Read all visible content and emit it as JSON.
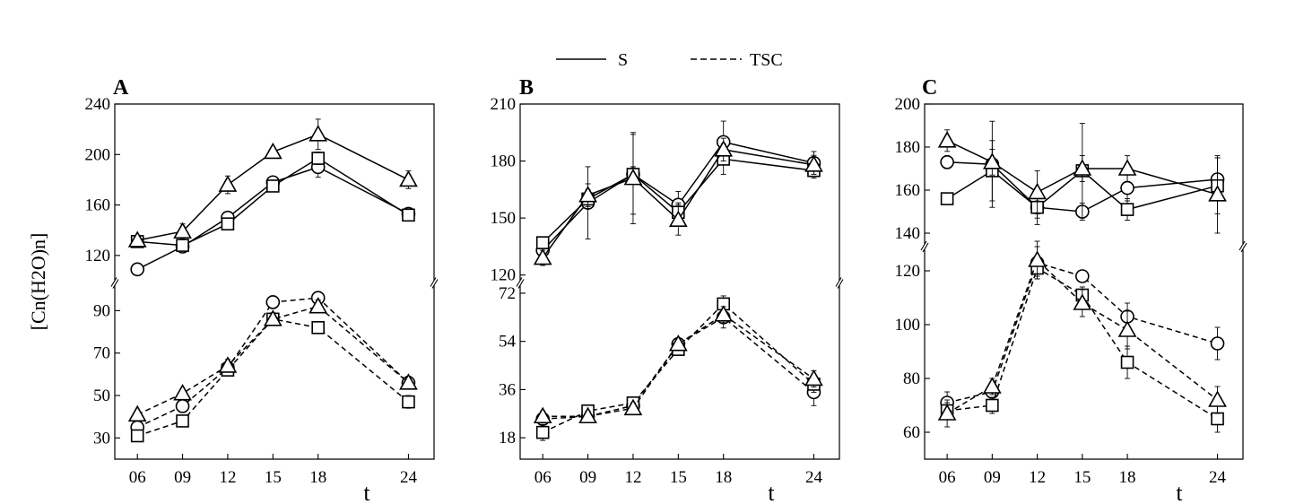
{
  "legend": {
    "entries": [
      {
        "label": "S",
        "style": "solid"
      },
      {
        "label": "TSC",
        "style": "dashed"
      }
    ]
  },
  "chart_data": [
    {
      "type": "line",
      "panel": "A",
      "ylabel": "[Cn(H2O)n]",
      "xlabel": "t",
      "x": [
        6,
        9,
        12,
        15,
        18,
        24
      ],
      "x_tick_labels": [
        "06",
        "09",
        "12",
        "15",
        "18",
        "24"
      ],
      "broken_y_axis": true,
      "upper": {
        "ylim": [
          100,
          240
        ],
        "yticks": [
          120,
          160,
          200,
          240
        ],
        "series": [
          {
            "group": "S",
            "marker": "circle",
            "values": [
              109,
              127,
              150,
              178,
              190,
              153
            ],
            "errors": [
              0,
              3,
              4,
              3,
              8,
              4
            ]
          },
          {
            "group": "S",
            "marker": "square",
            "values": [
              131,
              128,
              145,
              175,
              197,
              152
            ],
            "errors": [
              0,
              3,
              4,
              3,
              5,
              3
            ]
          },
          {
            "group": "S",
            "marker": "triangle",
            "values": [
              132,
              139,
              176,
              202,
              216,
              180
            ],
            "errors": [
              4,
              6,
              7,
              3,
              12,
              7
            ]
          }
        ]
      },
      "lower": {
        "ylim": [
          20,
          102
        ],
        "yticks": [
          30,
          50,
          70,
          90
        ],
        "series": [
          {
            "group": "TSC",
            "marker": "circle",
            "values": [
              35,
              45,
              63,
              94,
              96,
              56
            ],
            "errors": [
              2,
              3,
              2,
              3,
              3,
              2
            ]
          },
          {
            "group": "TSC",
            "marker": "square",
            "values": [
              31,
              38,
              62,
              86,
              82,
              47
            ],
            "errors": [
              2,
              2,
              2,
              2,
              2,
              3
            ]
          },
          {
            "group": "TSC",
            "marker": "triangle",
            "values": [
              41,
              51,
              64,
              86,
              92,
              56
            ],
            "errors": [
              2,
              2,
              3,
              3,
              3,
              3
            ]
          }
        ]
      }
    },
    {
      "type": "line",
      "panel": "B",
      "xlabel": "t",
      "x": [
        6,
        9,
        12,
        15,
        18,
        24
      ],
      "x_tick_labels": [
        "06",
        "09",
        "12",
        "15",
        "18",
        "24"
      ],
      "broken_y_axis": true,
      "upper": {
        "ylim": [
          117,
          210
        ],
        "yticks": [
          120,
          150,
          180,
          210
        ],
        "series": [
          {
            "group": "S",
            "marker": "circle",
            "values": [
              133,
              158,
              173,
              157,
              190,
              179
            ],
            "errors": [
              3,
              19,
              21,
              7,
              11,
              6
            ]
          },
          {
            "group": "S",
            "marker": "square",
            "values": [
              137,
              160,
              173,
              153,
              181,
              175
            ],
            "errors": [
              3,
              5,
              4,
              5,
              8,
              4
            ]
          },
          {
            "group": "S",
            "marker": "triangle",
            "values": [
              129,
              162,
              171,
              149,
              186,
              178
            ],
            "errors": [
              4,
              6,
              24,
              8,
              6,
              5
            ]
          }
        ]
      },
      "lower": {
        "ylim": [
          10,
          75
        ],
        "yticks": [
          18,
          36,
          54,
          72
        ],
        "series": [
          {
            "group": "TSC",
            "marker": "circle",
            "values": [
              25,
              26,
              30,
              53,
              63,
              35
            ],
            "errors": [
              2,
              2,
              2,
              2,
              4,
              5
            ]
          },
          {
            "group": "TSC",
            "marker": "square",
            "values": [
              20,
              28,
              31,
              51,
              68,
              38
            ],
            "errors": [
              3,
              2,
              2,
              2,
              3,
              3
            ]
          },
          {
            "group": "TSC",
            "marker": "triangle",
            "values": [
              26,
              26,
              29,
              53,
              64,
              40
            ],
            "errors": [
              2,
              2,
              2,
              2,
              3,
              3
            ]
          }
        ]
      }
    },
    {
      "type": "line",
      "panel": "C",
      "xlabel": "t",
      "x": [
        6,
        9,
        12,
        15,
        18,
        24
      ],
      "x_tick_labels": [
        "06",
        "09",
        "12",
        "15",
        "18",
        "24"
      ],
      "broken_y_axis": true,
      "upper": {
        "ylim": [
          135,
          200
        ],
        "yticks": [
          140,
          160,
          180,
          200
        ],
        "series": [
          {
            "group": "S",
            "marker": "circle",
            "values": [
              173,
              172,
              152,
              150,
              161,
              165
            ],
            "errors": [
              3,
              20,
              8,
              4,
              6,
              10
            ]
          },
          {
            "group": "S",
            "marker": "square",
            "values": [
              156,
              169,
              152,
              169,
              151,
              162
            ],
            "errors": [
              2,
              14,
              5,
              22,
              5,
              13
            ]
          },
          {
            "group": "S",
            "marker": "triangle",
            "values": [
              183,
              173,
              159,
              170,
              170,
              158
            ],
            "errors": [
              5,
              6,
              10,
              6,
              6,
              18
            ]
          }
        ]
      },
      "lower": {
        "ylim": [
          50,
          128
        ],
        "yticks": [
          60,
          80,
          100,
          120
        ],
        "series": [
          {
            "group": "TSC",
            "marker": "circle",
            "values": [
              71,
              75,
              123,
              118,
              103,
              93
            ],
            "errors": [
              4,
              3,
              6,
              2,
              5,
              6
            ]
          },
          {
            "group": "TSC",
            "marker": "square",
            "values": [
              68,
              70,
              121,
              111,
              86,
              65
            ],
            "errors": [
              3,
              3,
              3,
              3,
              6,
              5
            ]
          },
          {
            "group": "TSC",
            "marker": "triangle",
            "values": [
              67,
              77,
              124,
              108,
              98,
              72
            ],
            "errors": [
              5,
              3,
              7,
              5,
              7,
              5
            ]
          }
        ]
      }
    }
  ]
}
